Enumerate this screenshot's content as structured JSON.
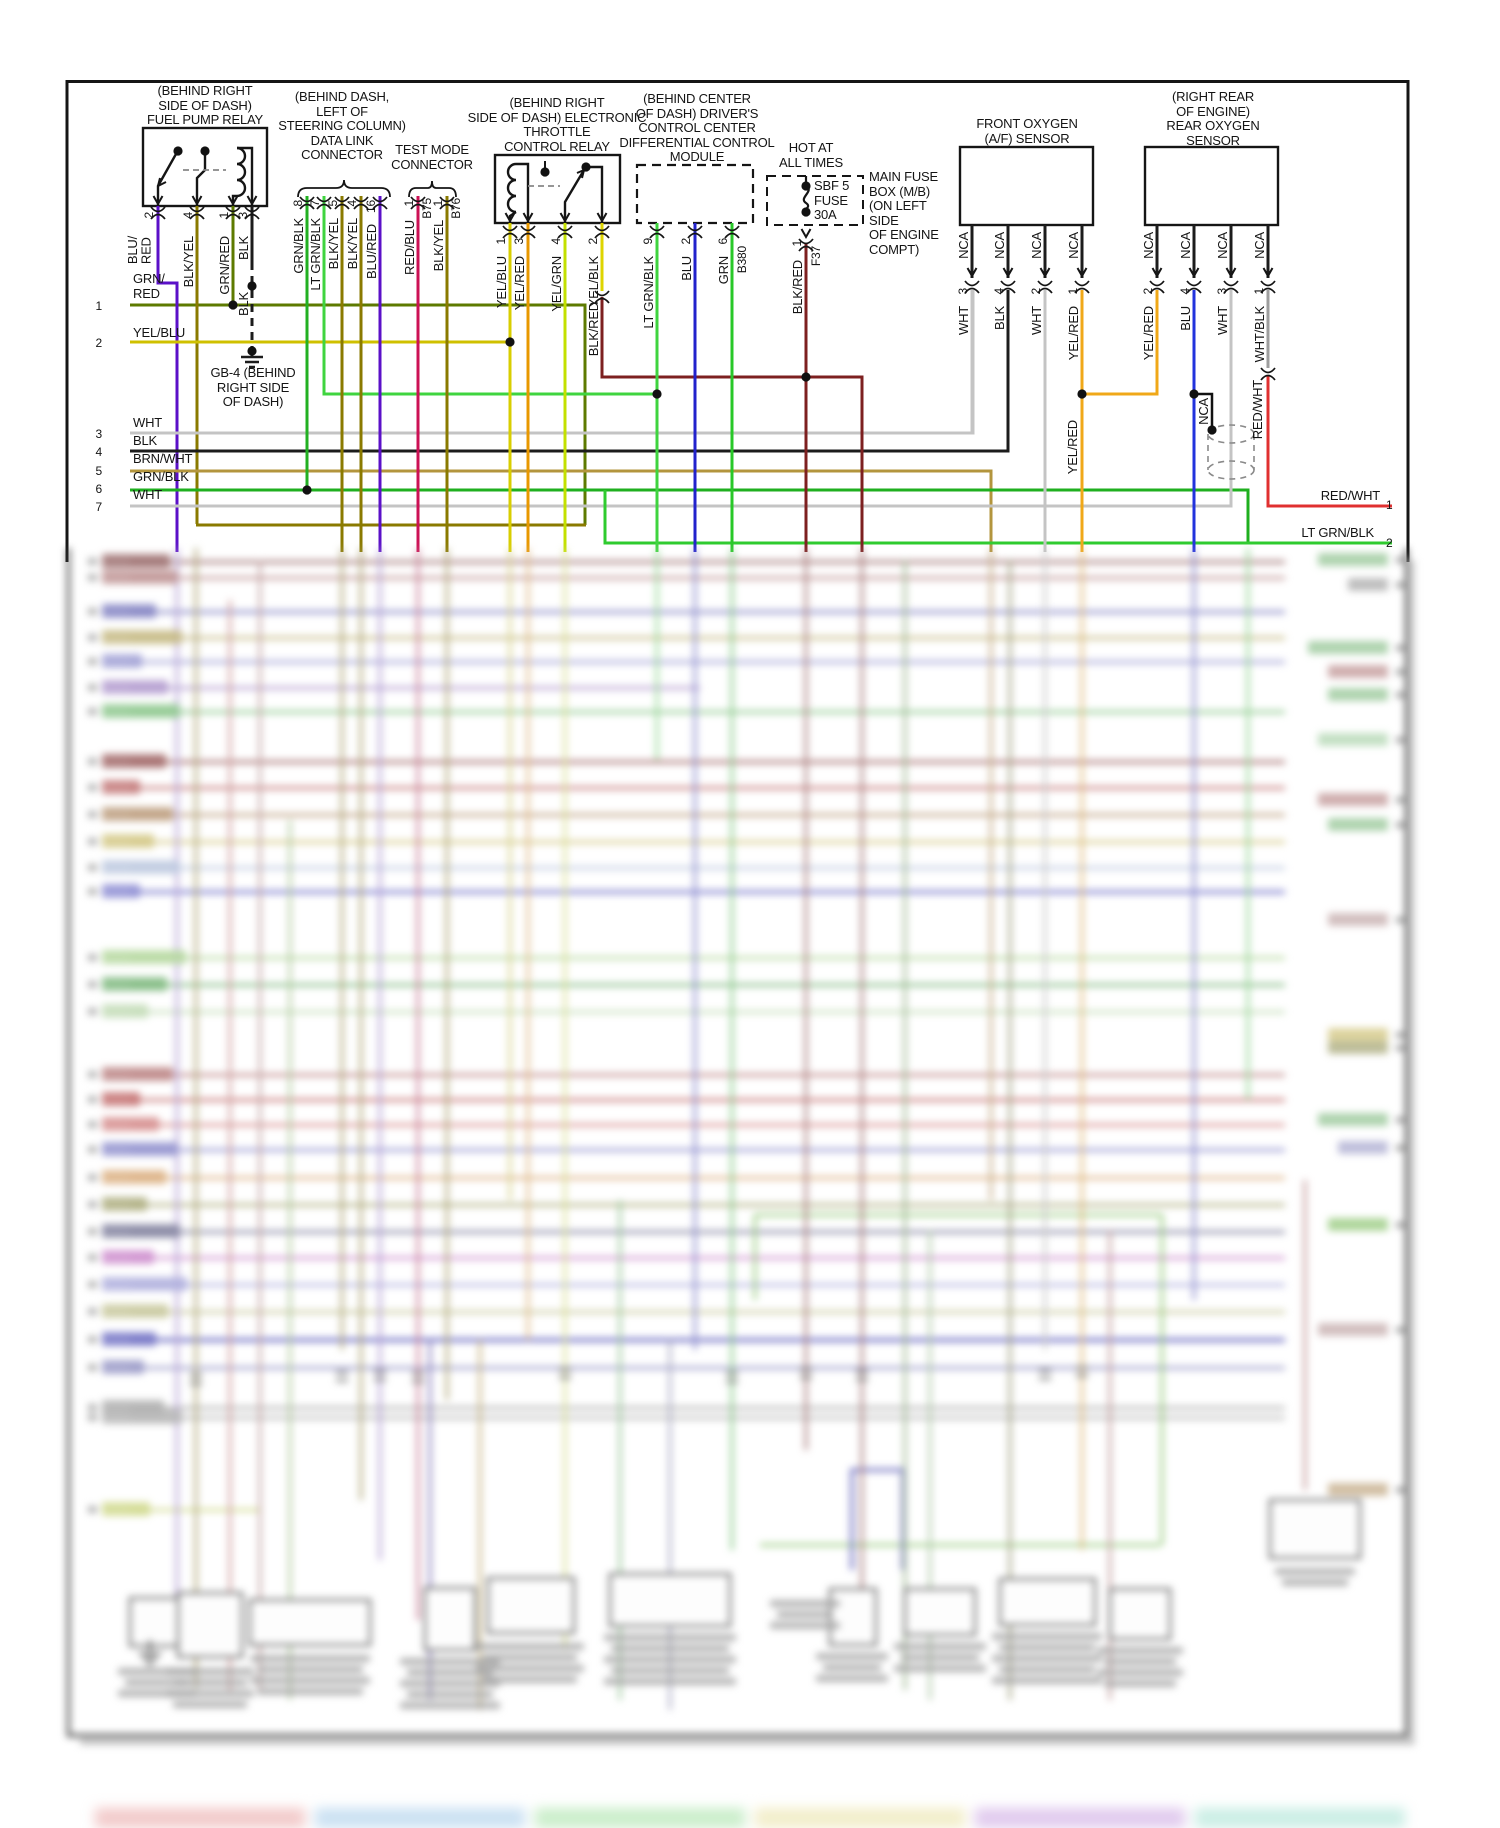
{
  "diagram": {
    "fp": {
      "title": "(BEHIND RIGHT\nSIDE OF DASH)\nFUEL PUMP RELAY",
      "p2n": "2",
      "p2c": "BLU/\nRED",
      "p4n": "4",
      "p4c": "BLK/YEL",
      "p1n": "1",
      "p1c": "GRN/RED",
      "p3n": "3",
      "p3c": "BLK"
    },
    "dlc": {
      "title": "(BEHIND DASH,\nLEFT OF\nSTEERING COLUMN)\nDATA LINK\nCONNECTOR",
      "p8n": "8",
      "p8c": "GRN/BLK",
      "p7n": "7",
      "p7c": "LT GRN/BLK",
      "p5n": "5",
      "p5c": "BLK/YEL",
      "p4n": "4",
      "p4c": "BLK/YEL",
      "p16n": "16",
      "p16c": "BLU/RED"
    },
    "tmc": {
      "title": "TEST MODE\nCONNECTOR",
      "p1n": "1",
      "p1c": "RED/BLU",
      "ref1": "B75",
      "p2n": "1",
      "p2c": "BLK/YEL",
      "ref2": "B76"
    },
    "etc": {
      "title": "(BEHIND RIGHT\nSIDE OF DASH) ELECTRONIC\nTHROTTLE\nCONTROL RELAY",
      "p1n": "1",
      "p1c": "YEL/BLU",
      "p3n": "3",
      "p3c": "YEL/RED",
      "p4n": "4",
      "p4c": "YEL/GRN",
      "p2n": "2",
      "p2c": "YEL/BLK",
      "inline": "BLK/RED"
    },
    "dccm": {
      "title": "(BEHIND CENTER\nOF DASH) DRIVER'S\nCONTROL CENTER\nDIFFERENTIAL CONTROL\nMODULE",
      "p9n": "9",
      "p9c": "LT GRN/BLK",
      "p2n": "2",
      "p2c": "BLU",
      "p6n": "6",
      "p6c": "GRN",
      "ref": "B380"
    },
    "fuse": {
      "hot": "HOT AT\nALL TIMES",
      "rating": "SBF 5\nFUSE\n30A",
      "box": "MAIN FUSE\nBOX (M/B)\n(ON LEFT\nSIDE\nOF ENGINE\nCOMPT)",
      "pn": "1",
      "pc": "BLK/RED",
      "ref": "F37"
    },
    "fo2": {
      "title": "FRONT OXYGEN\n(A/F) SENSOR",
      "nca": "NCA",
      "p3n": "3",
      "p3c": "WHT",
      "p4n": "4",
      "p4c": "BLK",
      "p2n": "2",
      "p2c": "WHT",
      "p1n": "1",
      "p1c": "YEL/RED"
    },
    "ro2": {
      "title": "(RIGHT REAR\nOF ENGINE)\nREAR OXYGEN\nSENSOR",
      "nca": "NCA",
      "p2n": "2",
      "p2c": "YEL/RED",
      "p4n": "4",
      "p4c": "BLU",
      "p3n": "3",
      "p3c": "WHT",
      "p1n": "1",
      "p1c": "WHT/BLK",
      "joint": "YEL/RED",
      "nca2": "NCA",
      "redwht": "RED/WHT"
    },
    "gb4": {
      "label": "GB-4 (BEHIND\nRIGHT SIDE\nOF DASH)",
      "blk": "BLK"
    },
    "left": [
      {
        "n": "1",
        "c": "GRN/\nRED"
      },
      {
        "n": "2",
        "c": "YEL/BLU"
      },
      {
        "n": "3",
        "c": "WHT"
      },
      {
        "n": "4",
        "c": "BLK"
      },
      {
        "n": "5",
        "c": "BRN/WHT"
      },
      {
        "n": "6",
        "c": "GRN/BLK"
      },
      {
        "n": "7",
        "c": "WHT"
      }
    ],
    "right": [
      {
        "n": "1",
        "c": "RED/WHT"
      },
      {
        "n": "2",
        "c": "LT GRN/BLK"
      }
    ],
    "palette": {
      "grn_red": "#5d7a00",
      "yel_blu": "#cfc000",
      "wht": "#c4c4c4",
      "blk": "#1c1c1c",
      "brn_wht": "#b3953d",
      "grn_blk": "#1faf1f",
      "blu_red": "#5b10c8",
      "blk_yel": "#8a7a00",
      "lt_grn_blk": "#3fd43f",
      "red_blu": "#cc1155",
      "yel_red": "#f0a818",
      "yel_grn": "#c3e000",
      "yel_blk": "#ded400",
      "blk_red": "#7d2020",
      "blu": "#2222cc",
      "grn": "#28c828",
      "red_wht": "#e03030",
      "wht_blk": "#9e9e9e"
    }
  }
}
